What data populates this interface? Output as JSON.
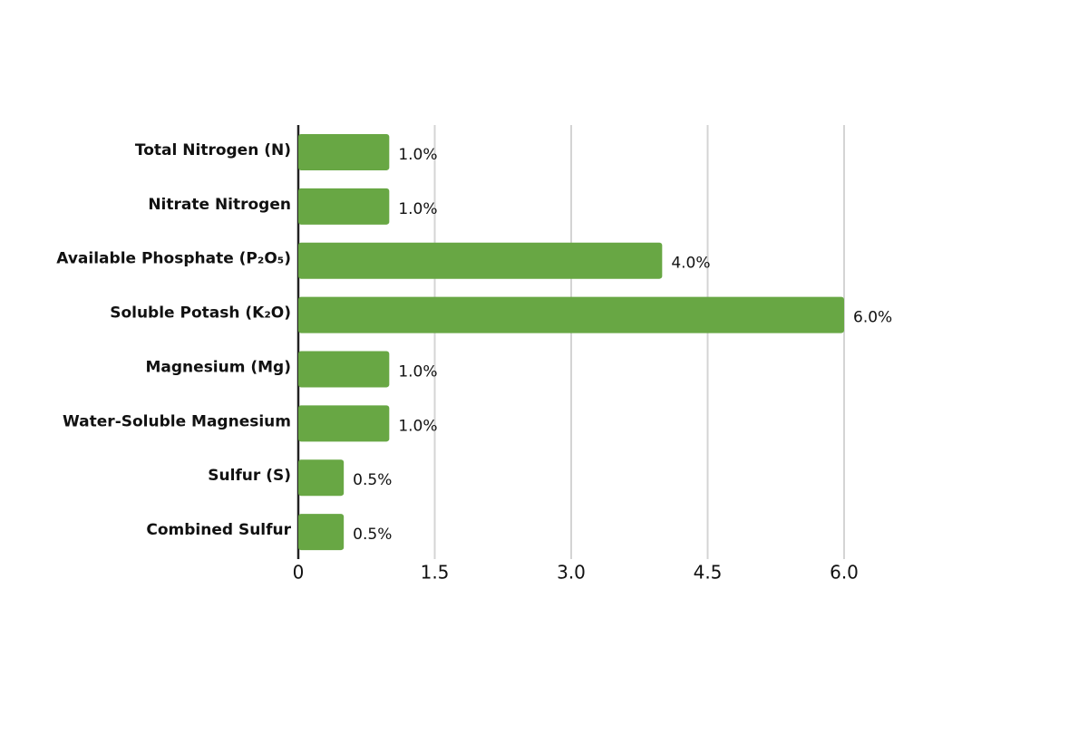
{
  "chart_data": {
    "type": "barh",
    "categories": [
      "Total Nitrogen (N)",
      "Nitrate Nitrogen",
      "Available Phosphate (P₂O₅)",
      "Soluble Potash (K₂O)",
      "Magnesium (Mg)",
      "Water-Soluble Magnesium",
      "Sulfur (S)",
      "Combined Sulfur"
    ],
    "values": [
      1.0,
      1.0,
      4.0,
      6.0,
      1.0,
      1.0,
      0.5,
      0.5
    ],
    "value_labels": [
      "1.0%",
      "1.0%",
      "4.0%",
      "6.0%",
      "1.0%",
      "1.0%",
      "0.5%",
      "0.5%"
    ],
    "color": "#68a744",
    "xlim": [
      0,
      6
    ],
    "xticks": [
      0,
      1.5,
      {
        "value": 3,
        "label": "3.0"
      },
      4.5,
      {
        "value": 6,
        "label": "6.0"
      }
    ],
    "grid": true
  }
}
